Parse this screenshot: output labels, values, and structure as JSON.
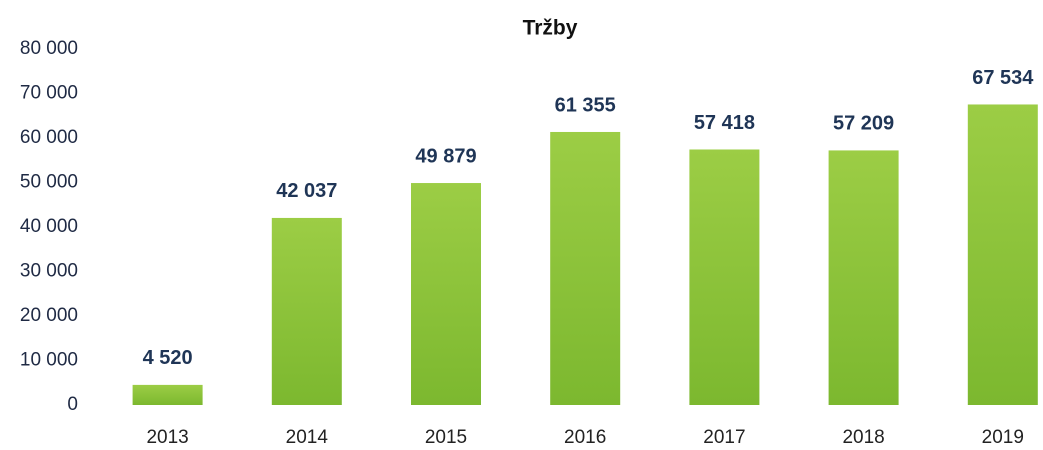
{
  "chart_data": {
    "type": "bar",
    "title": "Tržby",
    "categories": [
      "2013",
      "2014",
      "2015",
      "2016",
      "2017",
      "2018",
      "2019"
    ],
    "values": [
      4520,
      42037,
      49879,
      61355,
      57418,
      57209,
      67534
    ],
    "value_labels": [
      "4 520",
      "42 037",
      "49 879",
      "61 355",
      "57 418",
      "57 209",
      "67 534"
    ],
    "color": "#8cc43c",
    "ylim": [
      0,
      80000
    ],
    "yticks": [
      0,
      {
        "value": 10000,
        "label": "10 000"
      },
      {
        "value": 20000,
        "label": "20 000"
      },
      {
        "value": 30000,
        "label": "30 000"
      },
      {
        "value": 40000,
        "label": "40 000"
      },
      {
        "value": 50000,
        "label": "50 000"
      },
      {
        "value": 60000,
        "label": "60 000"
      },
      {
        "value": 70000,
        "label": "70 000"
      },
      {
        "value": 80000,
        "label": "80 000"
      }
    ],
    "grid": false
  }
}
